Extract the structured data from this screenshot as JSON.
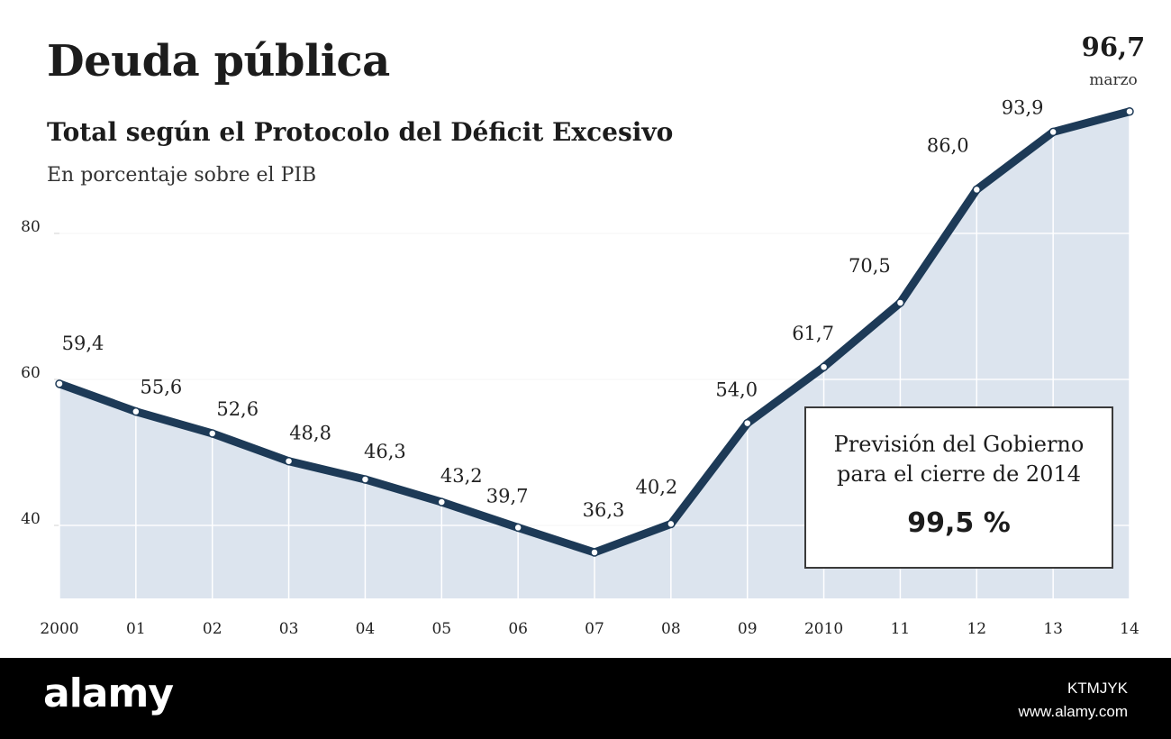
{
  "header": {
    "title": "Deuda pública",
    "subtitle": "Total según el Protocolo del Déficit Excesivo",
    "unit_note": "En porcentaje sobre el PIB"
  },
  "annotation": {
    "last_value": "96,7",
    "last_note": "marzo"
  },
  "forecast_box": {
    "line1": "Previsión del Gobierno",
    "line2": "para el cierre de 2014",
    "value": "99,5 %"
  },
  "footer": {
    "brand": "alamy",
    "image_code": "KTMJYK",
    "site": "www.alamy.com"
  },
  "colors": {
    "line": "#1d3a57",
    "area": "#dce4ee",
    "point_fill": "#ffffff",
    "grid": "#ffffff"
  },
  "chart_data": {
    "type": "area",
    "title": "Deuda pública",
    "subtitle": "Total según el Protocolo del Déficit Excesivo",
    "ylabel": "En porcentaje sobre el PIB",
    "xlabel": "",
    "x": [
      "2000",
      "01",
      "02",
      "03",
      "04",
      "05",
      "06",
      "07",
      "08",
      "09",
      "2010",
      "11",
      "12",
      "13",
      "14"
    ],
    "values": [
      59.4,
      55.6,
      52.6,
      48.8,
      46.3,
      43.2,
      39.7,
      36.3,
      40.2,
      54.0,
      61.7,
      70.5,
      86.0,
      93.9,
      96.7
    ],
    "data_labels": [
      "59,4",
      "55,6",
      "52,6",
      "48,8",
      "46,3",
      "43,2",
      "39,7",
      "36,3",
      "40,2",
      "54,0",
      "61,7",
      "70,5",
      "86,0",
      "93,9",
      "96,7"
    ],
    "yticks": [
      40,
      60,
      80
    ],
    "ylim": [
      30,
      100
    ],
    "grid": true
  }
}
